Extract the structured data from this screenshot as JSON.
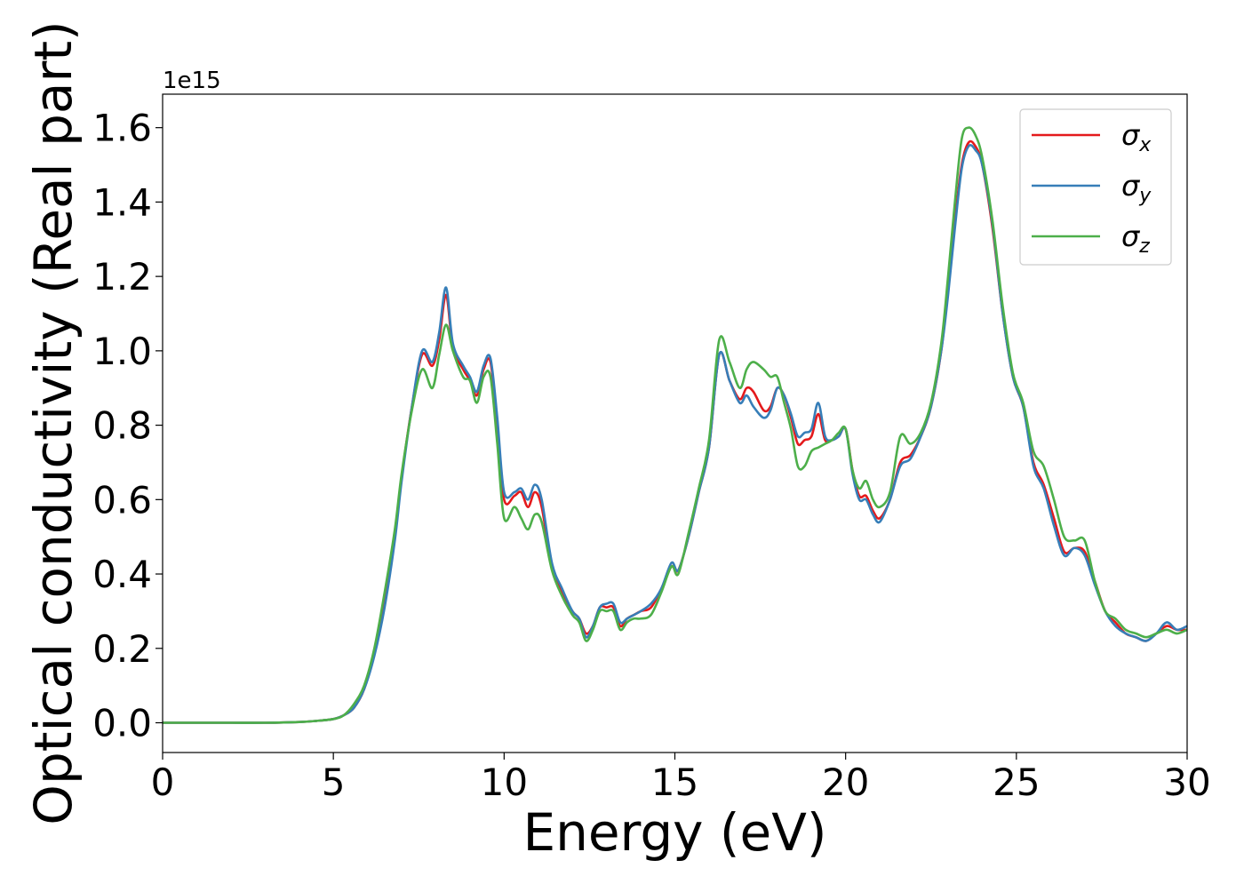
{
  "chart_data": {
    "type": "line",
    "xlabel": "Energy (eV)",
    "ylabel": "Optical conductivity (Real part)",
    "offset_text": "1e15",
    "xlim": [
      0,
      30
    ],
    "ylim": [
      -0.08,
      1.69
    ],
    "xticks": [
      0,
      5,
      10,
      15,
      20,
      25,
      30
    ],
    "yticks": [
      0.0,
      0.2,
      0.4,
      0.6,
      0.8,
      1.0,
      1.2,
      1.4,
      1.6
    ],
    "xtick_labels": [
      "0",
      "5",
      "10",
      "15",
      "20",
      "25",
      "30"
    ],
    "ytick_labels": [
      "0.0",
      "0.2",
      "0.4",
      "0.6",
      "0.8",
      "1.0",
      "1.2",
      "1.4",
      "1.6"
    ],
    "grid": false,
    "legend_position": "top-right",
    "series": [
      {
        "name": "σx",
        "sub": "x",
        "color": "#e41a1c",
        "x": [
          0,
          1,
          2,
          3,
          4,
          4.5,
          5,
          5.3,
          5.6,
          5.9,
          6.2,
          6.5,
          6.8,
          7.0,
          7.3,
          7.6,
          7.9,
          8.1,
          8.3,
          8.5,
          8.8,
          9.0,
          9.2,
          9.4,
          9.6,
          9.8,
          10.0,
          10.3,
          10.5,
          10.7,
          10.9,
          11.1,
          11.4,
          11.7,
          12.0,
          12.2,
          12.4,
          12.6,
          12.8,
          13.0,
          13.2,
          13.4,
          13.6,
          13.8,
          14.0,
          14.3,
          14.6,
          14.9,
          15.1,
          15.4,
          15.7,
          16.0,
          16.3,
          16.6,
          16.9,
          17.1,
          17.3,
          17.6,
          17.8,
          18.0,
          18.2,
          18.4,
          18.6,
          18.8,
          19.0,
          19.2,
          19.4,
          19.6,
          19.8,
          20.0,
          20.2,
          20.4,
          20.6,
          20.8,
          21.0,
          21.3,
          21.6,
          21.9,
          22.2,
          22.5,
          22.8,
          23.0,
          23.2,
          23.4,
          23.6,
          23.8,
          24.0,
          24.3,
          24.6,
          24.9,
          25.2,
          25.5,
          25.8,
          26.1,
          26.4,
          26.7,
          27.0,
          27.3,
          27.6,
          27.9,
          28.2,
          28.5,
          28.8,
          29.1,
          29.4,
          29.7,
          30.0
        ],
        "y": [
          0,
          0,
          0,
          0,
          0.002,
          0.005,
          0.01,
          0.02,
          0.04,
          0.09,
          0.19,
          0.33,
          0.5,
          0.66,
          0.85,
          0.99,
          0.96,
          1.03,
          1.15,
          1.01,
          0.95,
          0.92,
          0.88,
          0.95,
          0.97,
          0.8,
          0.6,
          0.61,
          0.62,
          0.58,
          0.62,
          0.58,
          0.42,
          0.35,
          0.3,
          0.28,
          0.24,
          0.26,
          0.31,
          0.31,
          0.31,
          0.26,
          0.28,
          0.29,
          0.3,
          0.31,
          0.36,
          0.42,
          0.41,
          0.5,
          0.62,
          0.74,
          0.99,
          0.92,
          0.87,
          0.9,
          0.89,
          0.84,
          0.85,
          0.9,
          0.88,
          0.82,
          0.75,
          0.76,
          0.77,
          0.83,
          0.76,
          0.76,
          0.77,
          0.79,
          0.68,
          0.61,
          0.61,
          0.57,
          0.55,
          0.6,
          0.7,
          0.72,
          0.77,
          0.85,
          1.0,
          1.17,
          1.35,
          1.5,
          1.56,
          1.55,
          1.5,
          1.33,
          1.1,
          0.93,
          0.85,
          0.7,
          0.64,
          0.55,
          0.46,
          0.47,
          0.46,
          0.38,
          0.3,
          0.27,
          0.24,
          0.23,
          0.22,
          0.24,
          0.26,
          0.25,
          0.25
        ]
      },
      {
        "name": "σy",
        "sub": "y",
        "color": "#377eb8",
        "x": [
          0,
          1,
          2,
          3,
          4,
          4.5,
          5,
          5.3,
          5.6,
          5.9,
          6.2,
          6.5,
          6.8,
          7.0,
          7.3,
          7.6,
          7.9,
          8.1,
          8.3,
          8.5,
          8.8,
          9.0,
          9.2,
          9.4,
          9.6,
          9.8,
          10.0,
          10.3,
          10.5,
          10.7,
          10.9,
          11.1,
          11.4,
          11.7,
          12.0,
          12.2,
          12.4,
          12.6,
          12.8,
          13.0,
          13.2,
          13.4,
          13.6,
          13.8,
          14.0,
          14.3,
          14.6,
          14.9,
          15.1,
          15.4,
          15.7,
          16.0,
          16.3,
          16.6,
          16.9,
          17.1,
          17.3,
          17.6,
          17.8,
          18.0,
          18.2,
          18.4,
          18.6,
          18.8,
          19.0,
          19.2,
          19.4,
          19.6,
          19.8,
          20.0,
          20.2,
          20.4,
          20.6,
          20.8,
          21.0,
          21.3,
          21.6,
          21.9,
          22.2,
          22.5,
          22.8,
          23.0,
          23.2,
          23.4,
          23.6,
          23.8,
          24.0,
          24.3,
          24.6,
          24.9,
          25.2,
          25.5,
          25.8,
          26.1,
          26.4,
          26.7,
          27.0,
          27.3,
          27.6,
          27.9,
          28.2,
          28.5,
          28.8,
          29.1,
          29.4,
          29.7,
          30.0
        ],
        "y": [
          0,
          0,
          0,
          0,
          0.002,
          0.005,
          0.01,
          0.02,
          0.04,
          0.09,
          0.18,
          0.31,
          0.49,
          0.65,
          0.85,
          1.0,
          0.97,
          1.05,
          1.17,
          1.02,
          0.96,
          0.93,
          0.89,
          0.96,
          0.98,
          0.82,
          0.62,
          0.62,
          0.63,
          0.6,
          0.64,
          0.6,
          0.43,
          0.36,
          0.3,
          0.28,
          0.23,
          0.26,
          0.31,
          0.32,
          0.32,
          0.27,
          0.28,
          0.29,
          0.3,
          0.32,
          0.36,
          0.43,
          0.41,
          0.5,
          0.62,
          0.74,
          0.99,
          0.92,
          0.86,
          0.88,
          0.85,
          0.82,
          0.84,
          0.9,
          0.88,
          0.83,
          0.77,
          0.78,
          0.79,
          0.86,
          0.77,
          0.76,
          0.77,
          0.79,
          0.67,
          0.6,
          0.6,
          0.56,
          0.54,
          0.6,
          0.69,
          0.71,
          0.77,
          0.85,
          1.0,
          1.15,
          1.33,
          1.49,
          1.55,
          1.54,
          1.5,
          1.34,
          1.1,
          0.93,
          0.85,
          0.69,
          0.63,
          0.53,
          0.45,
          0.47,
          0.45,
          0.37,
          0.3,
          0.26,
          0.24,
          0.23,
          0.22,
          0.24,
          0.27,
          0.25,
          0.26
        ]
      },
      {
        "name": "σz",
        "sub": "z",
        "color": "#4daf4a",
        "x": [
          0,
          1,
          2,
          3,
          4,
          4.5,
          5,
          5.3,
          5.6,
          5.9,
          6.2,
          6.5,
          6.8,
          7.0,
          7.3,
          7.6,
          7.9,
          8.1,
          8.3,
          8.5,
          8.8,
          9.0,
          9.2,
          9.4,
          9.6,
          9.8,
          10.0,
          10.3,
          10.5,
          10.7,
          10.9,
          11.1,
          11.4,
          11.7,
          12.0,
          12.2,
          12.4,
          12.6,
          12.8,
          13.0,
          13.2,
          13.4,
          13.6,
          13.8,
          14.0,
          14.3,
          14.6,
          14.9,
          15.1,
          15.4,
          15.7,
          16.0,
          16.3,
          16.6,
          16.9,
          17.1,
          17.3,
          17.6,
          17.8,
          18.0,
          18.2,
          18.4,
          18.6,
          18.8,
          19.0,
          19.2,
          19.4,
          19.6,
          19.8,
          20.0,
          20.2,
          20.4,
          20.6,
          20.8,
          21.0,
          21.3,
          21.6,
          21.9,
          22.2,
          22.5,
          22.8,
          23.0,
          23.2,
          23.4,
          23.6,
          23.8,
          24.0,
          24.3,
          24.6,
          24.9,
          25.2,
          25.5,
          25.8,
          26.1,
          26.4,
          26.7,
          27.0,
          27.3,
          27.6,
          27.9,
          28.2,
          28.5,
          28.8,
          29.1,
          29.4,
          29.7,
          30.0
        ],
        "y": [
          0,
          0,
          0,
          0,
          0.002,
          0.005,
          0.01,
          0.02,
          0.05,
          0.1,
          0.2,
          0.35,
          0.52,
          0.67,
          0.84,
          0.95,
          0.9,
          0.99,
          1.07,
          1.0,
          0.93,
          0.92,
          0.86,
          0.93,
          0.93,
          0.75,
          0.55,
          0.58,
          0.55,
          0.52,
          0.56,
          0.54,
          0.41,
          0.34,
          0.29,
          0.27,
          0.22,
          0.25,
          0.3,
          0.3,
          0.3,
          0.25,
          0.27,
          0.28,
          0.28,
          0.29,
          0.35,
          0.42,
          0.4,
          0.51,
          0.63,
          0.76,
          1.03,
          0.97,
          0.9,
          0.95,
          0.97,
          0.95,
          0.93,
          0.93,
          0.86,
          0.79,
          0.69,
          0.69,
          0.73,
          0.74,
          0.75,
          0.76,
          0.78,
          0.79,
          0.68,
          0.63,
          0.65,
          0.6,
          0.58,
          0.62,
          0.77,
          0.75,
          0.78,
          0.86,
          1.02,
          1.2,
          1.4,
          1.57,
          1.6,
          1.58,
          1.52,
          1.35,
          1.12,
          0.94,
          0.86,
          0.73,
          0.69,
          0.6,
          0.5,
          0.49,
          0.49,
          0.38,
          0.3,
          0.28,
          0.25,
          0.24,
          0.23,
          0.24,
          0.25,
          0.24,
          0.25
        ]
      }
    ]
  }
}
